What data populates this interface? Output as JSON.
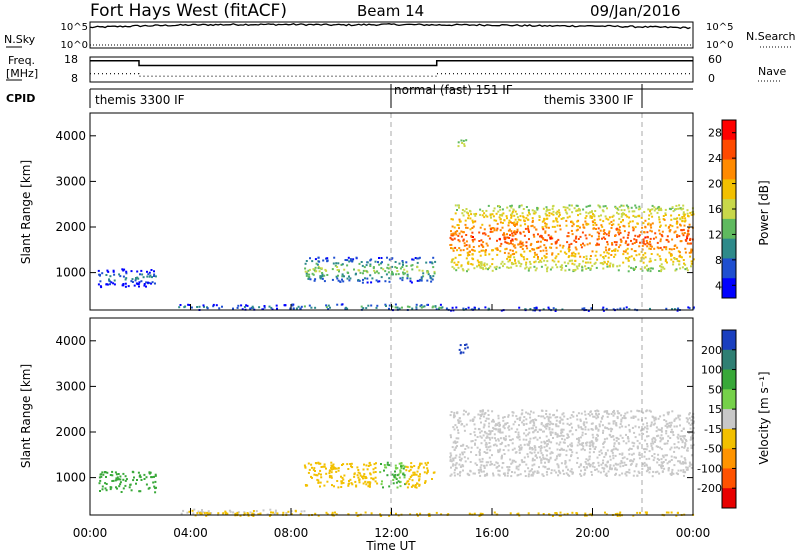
{
  "header": {
    "title": "Fort Hays West (fitACF)",
    "beam": "Beam 14",
    "date": "09/Jan/2016"
  },
  "noise_panel": {
    "left_label": "N.Sky",
    "right_label": "N.Search",
    "left_ticks": [
      "10^5",
      "10^0"
    ],
    "right_ticks": [
      "10^5",
      "10^0"
    ]
  },
  "freq_panel": {
    "left_label_1": "Freq.",
    "left_label_2": "[MHz]",
    "right_label": "Nave",
    "left_ticks": [
      "18",
      "8"
    ],
    "right_ticks": [
      "60",
      "0"
    ]
  },
  "cpid_panel": {
    "label": "CPID",
    "segments": [
      "themis 3300 IF",
      "normal (fast) 151 IF",
      "themis 3300 IF"
    ]
  },
  "power_panel": {
    "ylabel": "Slant Range [km]",
    "yticks": [
      "4000",
      "3000",
      "2000",
      "1000"
    ],
    "colorbar_label": "Power [dB]",
    "colorbar_ticks": [
      "28",
      "24",
      "20",
      "16",
      "12",
      "8",
      "4"
    ],
    "colorbar_colors": [
      "#ff0000",
      "#ff4a00",
      "#ff8a00",
      "#f2c000",
      "#c8d84a",
      "#5fba5f",
      "#2e8a8a",
      "#1f4fd0",
      "#0000ff"
    ]
  },
  "velocity_panel": {
    "ylabel": "Slant Range [km]",
    "yticks": [
      "4000",
      "3000",
      "2000",
      "1000"
    ],
    "colorbar_label": "Velocity [m s⁻¹]",
    "colorbar_ticks": [
      "200",
      "100",
      "50",
      "15",
      "-15",
      "-50",
      "-100",
      "-200"
    ],
    "colorbar_colors": [
      "#1a3fbf",
      "#2f7f73",
      "#38a838",
      "#76d14a",
      "#c8c8c8",
      "#f2c000",
      "#ff9400",
      "#ff5200",
      "#e80000"
    ]
  },
  "x_axis": {
    "label": "Time UT",
    "ticks": [
      "00:00",
      "04:00",
      "08:00",
      "12:00",
      "16:00",
      "20:00",
      "00:00"
    ]
  },
  "chart_data": [
    {
      "type": "line",
      "name": "noise",
      "x_hours": [
        0,
        2,
        4,
        6,
        8,
        10,
        12,
        14,
        16,
        18,
        20,
        22,
        24
      ],
      "sky_noise_log10": [
        4.3,
        4.6,
        4.8,
        4.9,
        4.9,
        4.8,
        4.9,
        4.8,
        4.8,
        4.6,
        4.6,
        4.4,
        4.2
      ]
    },
    {
      "type": "line",
      "name": "frequency_nave",
      "freq_mhz_steps": [
        {
          "from": 0.0,
          "to": 1.95,
          "value": 16.5
        },
        {
          "from": 1.95,
          "to": 13.8,
          "value": 14.6
        },
        {
          "from": 13.8,
          "to": 24.0,
          "value": 16.5
        }
      ],
      "nave_steps": [
        {
          "from": 0.0,
          "to": 1.95,
          "value": 20
        },
        {
          "from": 1.95,
          "to": 13.8,
          "value": 14
        },
        {
          "from": 13.8,
          "to": 24.0,
          "value": 20
        }
      ],
      "cpid_boundaries_hours": [
        12.0,
        21.95
      ]
    },
    {
      "type": "heatmap",
      "name": "power",
      "x_range_hours": [
        0,
        24
      ],
      "y_range_km": [
        180,
        4500
      ],
      "regions": [
        {
          "t": [
            0.3,
            2.6
          ],
          "r": [
            700,
            1100
          ],
          "level": 10
        },
        {
          "t": [
            3.5,
            8.5
          ],
          "r": [
            200,
            320
          ],
          "level": 9
        },
        {
          "t": [
            8.5,
            13.7
          ],
          "r": [
            800,
            1350
          ],
          "level": 15
        },
        {
          "t": [
            8.0,
            14.0
          ],
          "r": [
            200,
            330
          ],
          "level": 12
        },
        {
          "t": [
            14.6,
            15.0
          ],
          "r": [
            3700,
            3950
          ],
          "level": 17
        },
        {
          "t": [
            14.3,
            24.0
          ],
          "r": [
            1050,
            2500
          ],
          "level": 25
        },
        {
          "t": [
            14.0,
            24.0
          ],
          "r": [
            180,
            260
          ],
          "level": 8
        }
      ]
    },
    {
      "type": "heatmap",
      "name": "velocity",
      "x_range_hours": [
        0,
        24
      ],
      "y_range_km": [
        180,
        4500
      ],
      "regions": [
        {
          "t": [
            0.3,
            2.6
          ],
          "r": [
            700,
            1150
          ],
          "v": 40
        },
        {
          "t": [
            3.5,
            8.5
          ],
          "r": [
            200,
            320
          ],
          "v": -10
        },
        {
          "t": [
            8.5,
            11.5
          ],
          "r": [
            800,
            1350
          ],
          "v": -40
        },
        {
          "t": [
            11.5,
            12.5
          ],
          "r": [
            800,
            1350
          ],
          "v": 30
        },
        {
          "t": [
            12.5,
            13.7
          ],
          "r": [
            800,
            1350
          ],
          "v": -30
        },
        {
          "t": [
            14.6,
            15.0
          ],
          "r": [
            3700,
            3950
          ],
          "v": 210
        },
        {
          "t": [
            14.3,
            24.0
          ],
          "r": [
            1050,
            2500
          ],
          "v": 0
        },
        {
          "t": [
            4.0,
            24.0
          ],
          "r": [
            180,
            260
          ],
          "v": -40
        }
      ]
    }
  ]
}
